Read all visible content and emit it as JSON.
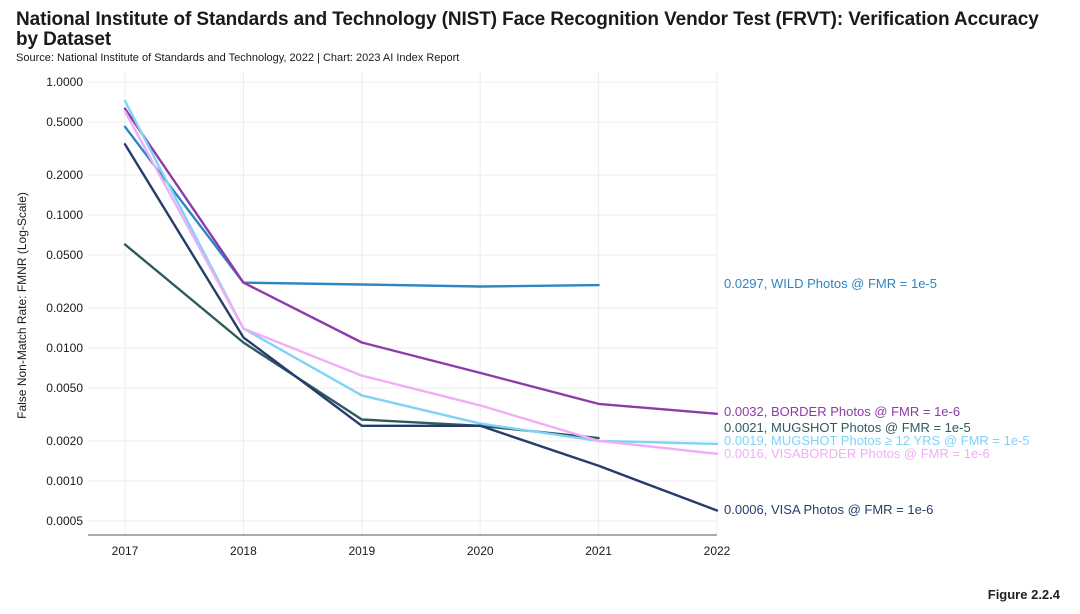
{
  "header": {
    "title": "National Institute of Standards and Technology (NIST) Face Recognition Vendor Test (FRVT): Verification Accuracy by Dataset",
    "subtitle": "Source: National Institute of Standards and Technology, 2022 | Chart: 2023 AI Index Report"
  },
  "footer": {
    "figure_label": "Figure 2.2.4"
  },
  "chart_data": {
    "type": "line",
    "title": "National Institute of Standards and Technology (NIST) Face Recognition Vendor Test (FRVT): Verification Accuracy by Dataset",
    "xlabel": "",
    "ylabel": "False Non-Match Rate: FMNR (Log-Scale)",
    "yscale": "log",
    "ylim": [
      0.0004,
      1.0
    ],
    "x": [
      2017,
      2018,
      2019,
      2020,
      2021,
      2022
    ],
    "y_ticks": [
      1.0,
      0.5,
      0.2,
      0.1,
      0.05,
      0.02,
      0.01,
      0.005,
      0.002,
      0.001,
      0.0005
    ],
    "y_tick_labels": [
      "1.0000",
      "0.5000",
      "0.2000",
      "0.1000",
      "0.0500",
      "0.0200",
      "0.0100",
      "0.0050",
      "0.0020",
      "0.0010",
      "0.0005"
    ],
    "grid": true,
    "series": [
      {
        "name": "WILD Photos @ FMR = 1e-5",
        "color": "#2e86c1",
        "values": [
          0.46,
          0.031,
          0.03,
          0.029,
          0.0297,
          null
        ],
        "end_label": "0.0297, WILD Photos @ FMR = 1e-5"
      },
      {
        "name": "BORDER Photos @ FMR = 1e-6",
        "color": "#8e3ba8",
        "values": [
          0.63,
          0.031,
          0.011,
          0.0065,
          0.0038,
          0.0032
        ],
        "end_label": "0.0032, BORDER Photos @ FMR = 1e-6"
      },
      {
        "name": "MUGSHOT Photos @ FMR = 1e-5",
        "color": "#2f5a5e",
        "values": [
          0.06,
          0.011,
          0.0029,
          0.0026,
          0.0021,
          null
        ],
        "end_label": "0.0021, MUGSHOT Photos @ FMR = 1e-5"
      },
      {
        "name": "MUGSHOT Photos ≥ 12 YRS @ FMR = 1e-5",
        "color": "#7fd3f7",
        "values": [
          0.72,
          0.014,
          0.0044,
          0.0027,
          0.002,
          0.0019
        ],
        "end_label": "0.0019, MUGSHOT Photos ≥ 12 YRS @ FMR = 1e-5"
      },
      {
        "name": "VISABORDER Photos @ FMR = 1e-6",
        "color": "#f0aef5",
        "values": [
          0.6,
          0.014,
          0.0062,
          0.0037,
          0.002,
          0.0016
        ],
        "end_label": "0.0016, VISABORDER Photos @ FMR = 1e-6"
      },
      {
        "name": "VISA Photos @ FMR = 1e-6",
        "color": "#263d6b",
        "values": [
          0.34,
          0.012,
          0.0026,
          0.0026,
          0.0013,
          0.0006
        ],
        "end_label": "0.0006, VISA Photos @ FMR = 1e-6"
      }
    ]
  }
}
